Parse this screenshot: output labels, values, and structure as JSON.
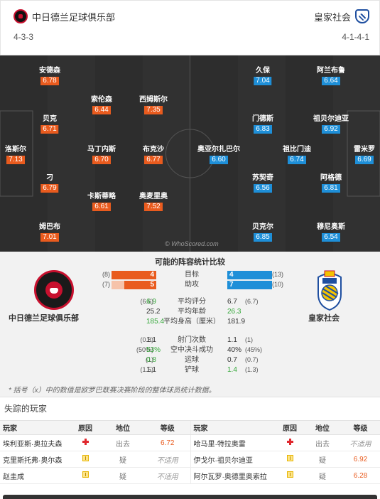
{
  "header": {
    "home_team": "中日德兰足球俱乐部",
    "away_team": "皇家社会",
    "home_formation": "4-3-3",
    "away_formation": "4-1-4-1"
  },
  "colors": {
    "home": "#e95b1e",
    "away": "#1e8fd8"
  },
  "pitch": {
    "watermark": "© WhoScored.com",
    "home_players": [
      {
        "name": "安德森",
        "rating": "6.78"
      },
      {
        "name": "索伦森",
        "rating": "6.44"
      },
      {
        "name": "西姆斯尔",
        "rating": "7.35"
      },
      {
        "name": "贝克",
        "rating": "6.71"
      },
      {
        "name": "洛斯尔",
        "rating": "7.13"
      },
      {
        "name": "马丁内斯",
        "rating": "6.70"
      },
      {
        "name": "布克沙",
        "rating": "6.77"
      },
      {
        "name": "刁",
        "rating": "6.79"
      },
      {
        "name": "卡斯蒂略",
        "rating": "6.61"
      },
      {
        "name": "奥麦里奥",
        "rating": "7.52"
      },
      {
        "name": "姆巴布",
        "rating": "7.01"
      }
    ],
    "away_players": [
      {
        "name": "久保",
        "rating": "7.04"
      },
      {
        "name": "阿兰布鲁",
        "rating": "6.64"
      },
      {
        "name": "门德斯",
        "rating": "6.83"
      },
      {
        "name": "祖贝尔迪亚",
        "rating": "6.92"
      },
      {
        "name": "奥亚尔扎巴尔",
        "rating": "6.60"
      },
      {
        "name": "祖比门迪",
        "rating": "6.74"
      },
      {
        "name": "雷米罗",
        "rating": "6.69"
      },
      {
        "name": "苏契奇",
        "rating": "6.56"
      },
      {
        "name": "阿格德",
        "rating": "6.81"
      },
      {
        "name": "贝克尔",
        "rating": "6.85"
      },
      {
        "name": "穆尼奥斯",
        "rating": "6.54"
      }
    ]
  },
  "stats": {
    "title": "可能的阵容统计比较",
    "home_caption": "中日德兰足球俱乐部",
    "away_caption": "皇家社会",
    "bars": [
      {
        "label": "目标",
        "home": 4,
        "home_prev": "(8)",
        "away": 4,
        "away_prev": "(13)"
      },
      {
        "label": "助攻",
        "home": 5,
        "home_prev": "(7)",
        "away": 7,
        "away_prev": "(10)"
      }
    ],
    "rows1": [
      {
        "label": "平均评分",
        "home": "6.9",
        "home_prev": "(6.6)",
        "away": "6.7",
        "away_prev": "(6.7)",
        "home_green": true,
        "away_green": false
      },
      {
        "label": "平均年龄",
        "home": "25.2",
        "home_prev": "",
        "away": "26.3",
        "away_prev": "",
        "home_green": false,
        "away_green": true
      },
      {
        "label": "平均身高（厘米）",
        "home": "185.4",
        "home_prev": "",
        "away": "181.9",
        "away_prev": "",
        "home_green": true,
        "away_green": false
      }
    ],
    "rows2": [
      {
        "label": "射门次数",
        "home": "1.1",
        "home_prev": "(0.8)",
        "away": "1.1",
        "away_prev": "(1)",
        "home_green": false,
        "away_green": false
      },
      {
        "label": "空中决斗成功",
        "home": "53%",
        "home_prev": "(50%)",
        "away": "40%",
        "away_prev": "(45%)",
        "home_green": true,
        "away_green": false
      },
      {
        "label": "运球",
        "home": "0.8",
        "home_prev": "(1)",
        "away": "0.7",
        "away_prev": "(0.7)",
        "home_green": true,
        "away_green": false
      },
      {
        "label": "铲球",
        "home": "1.1",
        "home_prev": "(1.5)",
        "away": "1.4",
        "away_prev": "(1.3)",
        "home_green": false,
        "away_green": true
      }
    ],
    "footnote": "* 括号（x）中的数值是欧罗巴联赛决赛阶段的整体球员统计数据。"
  },
  "missing": {
    "title": "失踪的玩家",
    "headers": [
      "玩家",
      "原因",
      "地位",
      "等级",
      "玩家",
      "原因",
      "地位",
      "等级"
    ],
    "rows": [
      {
        "hp": "埃利亚斯·奥拉夫森",
        "hr": "injury",
        "hs": "出去",
        "hg": "6.72",
        "ap": "哈马里·特拉奥雷",
        "ar": "injury",
        "as": "出去",
        "ag": "不适用"
      },
      {
        "hp": "克里斯托弗·奥尔森",
        "hr": "doubt",
        "hs": "疑",
        "hg": "不适用",
        "ap": "伊戈尔·祖贝尔迪亚",
        "ar": "doubt",
        "as": "疑",
        "ag": "6.92"
      },
      {
        "hp": "赵圭成",
        "hr": "doubt",
        "hs": "疑",
        "hg": "不适用",
        "ap": "阿尔瓦罗·奥德里奥索拉",
        "ar": "doubt",
        "as": "疑",
        "ag": "6.28"
      }
    ]
  }
}
